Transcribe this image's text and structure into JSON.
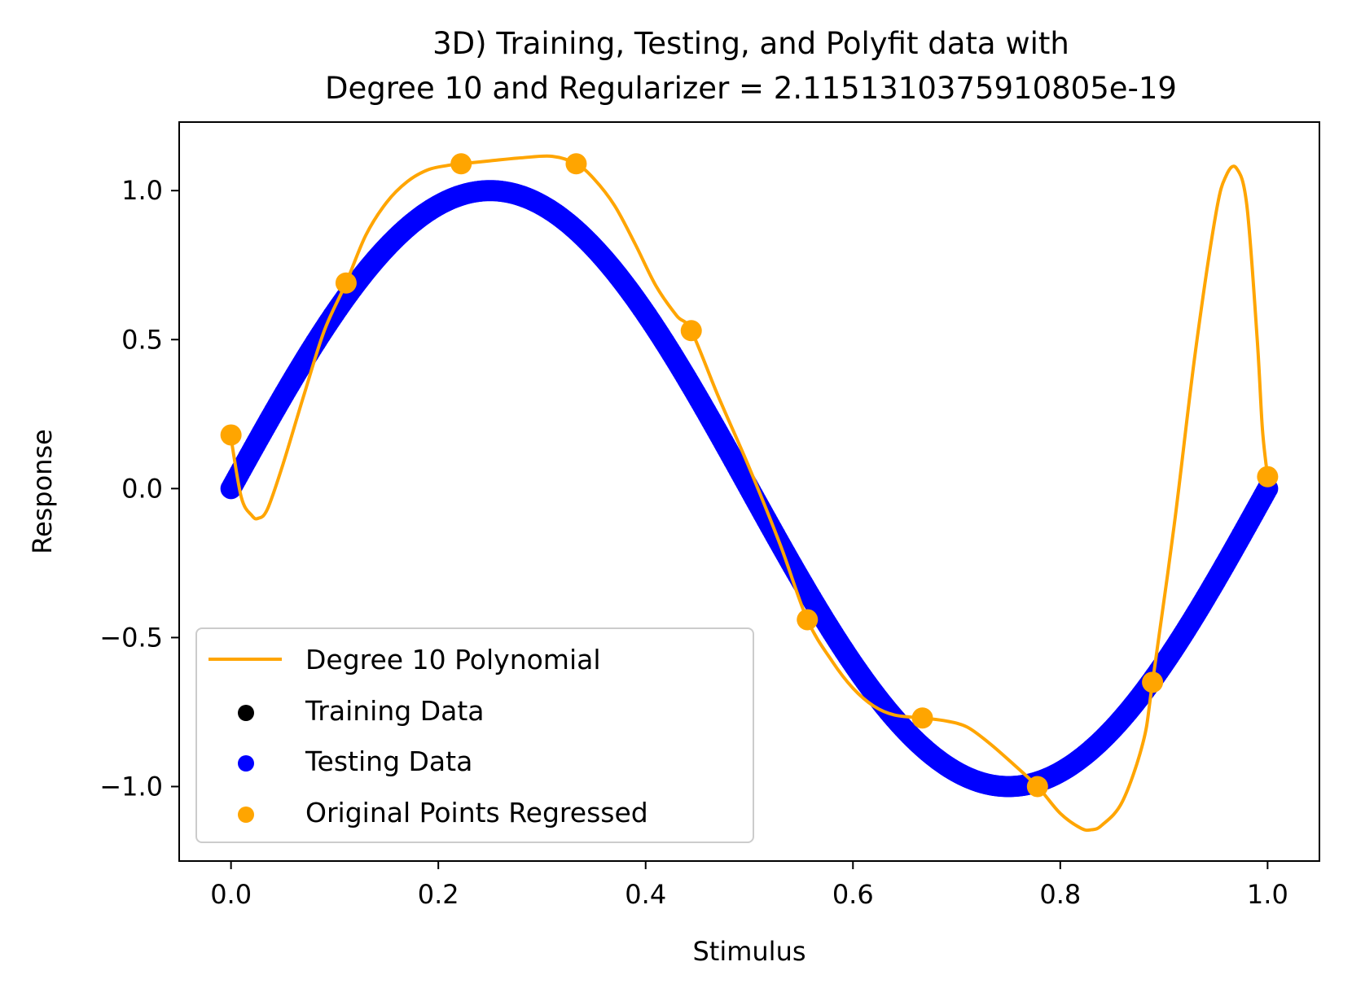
{
  "chart_data": {
    "type": "scatter",
    "title_line1": "3D) Training, Testing, and Polyfit data with",
    "title_line2": "Degree 10 and Regularizer = 2.1151310375910805e-19",
    "xlabel": "Stimulus",
    "ylabel": "Response",
    "xlim": [
      -0.05,
      1.05
    ],
    "ylim": [
      -1.25,
      1.23
    ],
    "xticks": [
      0.0,
      0.2,
      0.4,
      0.6,
      0.8,
      1.0
    ],
    "xtick_labels": [
      "0.0",
      "0.2",
      "0.4",
      "0.6",
      "0.8",
      "1.0"
    ],
    "yticks": [
      -1.0,
      -0.5,
      0.0,
      0.5,
      1.0
    ],
    "ytick_labels": [
      "−1.0",
      "−0.5",
      "0.0",
      "0.5",
      "1.0"
    ],
    "grid": false,
    "legend_position": "lower-left",
    "legend": [
      {
        "label": "Degree 10 Polynomial",
        "kind": "line",
        "color": "#ffa500"
      },
      {
        "label": "Training Data",
        "kind": "marker",
        "color": "#000000"
      },
      {
        "label": "Testing Data",
        "kind": "marker",
        "color": "#0000ff"
      },
      {
        "label": "Original Points Regressed",
        "kind": "marker",
        "color": "#ffa500"
      }
    ],
    "series": [
      {
        "name": "Testing Data",
        "kind": "dense-scatter",
        "color": "#0000ff",
        "function": "sin(2*pi*x)",
        "x_range": [
          0,
          1
        ]
      },
      {
        "name": "Original Points Regressed",
        "kind": "scatter",
        "color": "#ffa500",
        "x": [
          0.0,
          0.111,
          0.222,
          0.333,
          0.444,
          0.556,
          0.667,
          0.778,
          0.889,
          1.0
        ],
        "y": [
          0.18,
          0.69,
          1.09,
          1.09,
          0.53,
          -0.44,
          -0.77,
          -1.0,
          -0.65,
          0.04
        ]
      },
      {
        "name": "Degree 10 Polynomial",
        "kind": "line",
        "color": "#ffa500",
        "x": [
          0.0,
          0.01,
          0.02,
          0.026,
          0.035,
          0.05,
          0.07,
          0.09,
          0.111,
          0.13,
          0.15,
          0.17,
          0.19,
          0.21,
          0.222,
          0.25,
          0.28,
          0.31,
          0.333,
          0.35,
          0.37,
          0.39,
          0.41,
          0.43,
          0.444,
          0.47,
          0.5,
          0.53,
          0.556,
          0.58,
          0.6,
          0.62,
          0.64,
          0.667,
          0.69,
          0.71,
          0.73,
          0.75,
          0.778,
          0.8,
          0.82,
          0.83,
          0.84,
          0.86,
          0.88,
          0.889,
          0.91,
          0.93,
          0.95,
          0.96,
          0.97,
          0.98,
          0.99,
          0.995,
          1.0
        ],
        "y": [
          0.17,
          -0.03,
          -0.09,
          -0.1,
          -0.07,
          0.08,
          0.31,
          0.53,
          0.69,
          0.85,
          0.96,
          1.03,
          1.07,
          1.085,
          1.09,
          1.1,
          1.11,
          1.115,
          1.09,
          1.04,
          0.95,
          0.82,
          0.68,
          0.58,
          0.53,
          0.31,
          0.07,
          -0.19,
          -0.44,
          -0.58,
          -0.67,
          -0.73,
          -0.76,
          -0.77,
          -0.78,
          -0.8,
          -0.85,
          -0.91,
          -1.0,
          -1.09,
          -1.14,
          -1.145,
          -1.13,
          -1.05,
          -0.85,
          -0.65,
          -0.12,
          0.45,
          0.92,
          1.05,
          1.075,
          0.95,
          0.5,
          0.2,
          0.04
        ]
      }
    ]
  }
}
